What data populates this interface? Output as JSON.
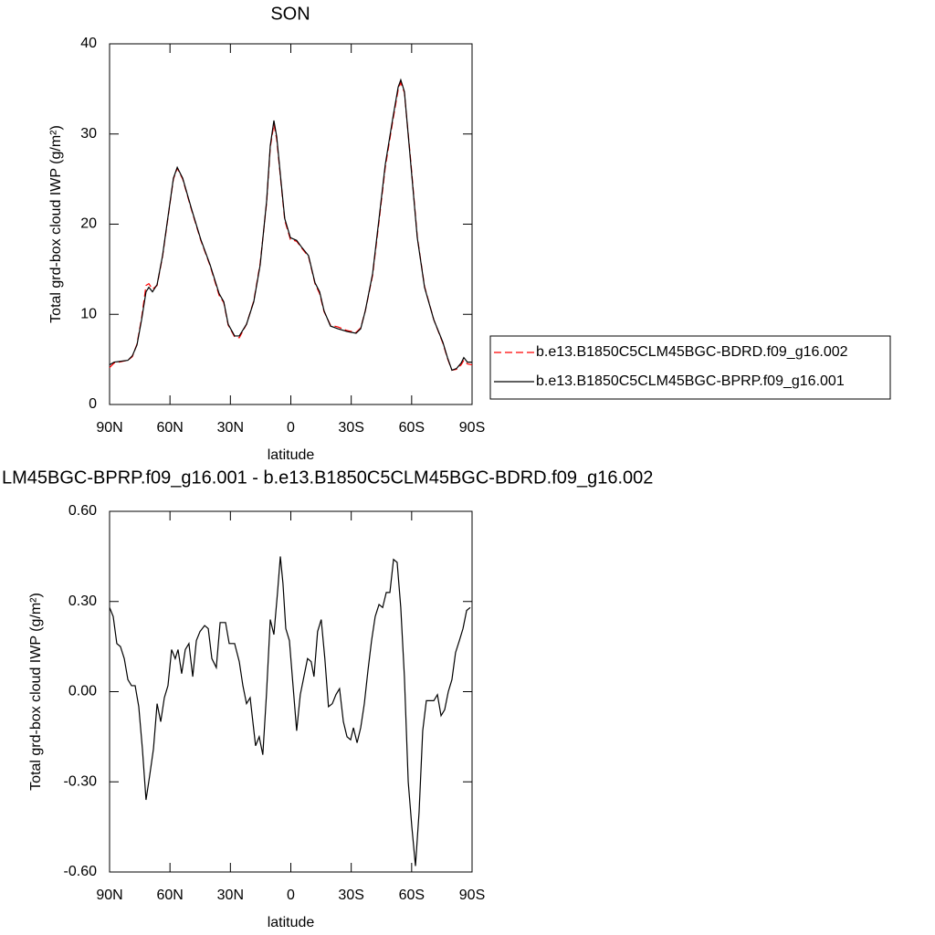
{
  "chart_data": [
    {
      "type": "line",
      "title": "SON",
      "xlabel": "latitude",
      "ylabel": "Total grd-box cloud IWP (g/m²)",
      "xlim": [
        90,
        -90
      ],
      "xticks": [
        {
          "value": 90,
          "label": "90N"
        },
        {
          "value": 60,
          "label": "60N"
        },
        {
          "value": 30,
          "label": "30N"
        },
        0,
        {
          "value": -30,
          "label": "30S"
        },
        {
          "value": -60,
          "label": "60S"
        },
        {
          "value": -90,
          "label": "90S"
        }
      ],
      "ylim": [
        0,
        40
      ],
      "yticks": [
        0,
        10,
        20,
        30,
        40
      ],
      "legend_position": "right",
      "x": [
        90,
        87.7,
        80.9,
        78.7,
        76.4,
        74.1,
        71.9,
        70.5,
        68.7,
        66.4,
        63.7,
        60.5,
        58.3,
        56.4,
        53.7,
        49.2,
        44.7,
        40.1,
        35.6,
        33.3,
        31.1,
        27.9,
        25.6,
        22.0,
        18.4,
        15.2,
        12.0,
        10.2,
        8.4,
        7.0,
        4.8,
        3.0,
        0.2,
        -2.9,
        -5.2,
        -8.8,
        -12.0,
        -14.3,
        -16.5,
        -19.7,
        -23.4,
        -27.9,
        -32.4,
        -34.7,
        -37.0,
        -40.6,
        -43.8,
        -46.9,
        -50.6,
        -53.3,
        -54.6,
        -56.4,
        -59.6,
        -62.8,
        -66.4,
        -71.0,
        -75.5,
        -77.8,
        -80.0,
        -82.3,
        -84.6,
        -85.9,
        -87.7,
        -90
      ],
      "series": [
        {
          "name": "b.e13.B1850C5CLM45BGC-BDRD.f09_g16.002",
          "color": "#ff0000",
          "style": "dashed",
          "values": [
            4.1,
            4.6,
            4.9,
            5.3,
            6.7,
            9.6,
            13.2,
            13.4,
            12.8,
            13.2,
            16.4,
            21.5,
            25,
            26.2,
            25,
            21.5,
            18.2,
            15.4,
            12.1,
            11.3,
            8.8,
            7.5,
            7.4,
            8.9,
            11.5,
            15.7,
            22.4,
            28.5,
            31.1,
            29.4,
            24.4,
            20.4,
            18.3,
            18.1,
            17.4,
            16.4,
            13.4,
            12.3,
            10.3,
            8.8,
            8.6,
            8.2,
            8.0,
            8.5,
            10.4,
            14.3,
            20.3,
            26.3,
            31.4,
            34.9,
            35.7,
            34.6,
            26.9,
            18.6,
            13.1,
            9.4,
            6.8,
            5.1,
            3.8,
            3.9,
            4.4,
            4.9,
            4.5,
            4.4
          ]
        },
        {
          "name": "b.e13.B1850C5CLM45BGC-BPRP.f09_g16.001",
          "color": "#000000",
          "style": "solid",
          "values": [
            4.4,
            4.7,
            4.9,
            5.4,
            6.6,
            9.4,
            12.5,
            13,
            12.5,
            13.3,
            16.5,
            21.6,
            25.1,
            26.3,
            25.1,
            21.6,
            18.3,
            15.5,
            12.3,
            11.4,
            8.9,
            7.6,
            7.6,
            8.9,
            11.4,
            15.5,
            22.6,
            28.7,
            31.5,
            29.7,
            24.6,
            20.6,
            18.5,
            18.2,
            17.5,
            16.5,
            13.5,
            12.5,
            10.4,
            8.7,
            8.4,
            8.1,
            7.9,
            8.4,
            10.4,
            14.5,
            20.6,
            26.6,
            31.7,
            35.2,
            36,
            34.7,
            26.6,
            18.5,
            13,
            9.4,
            6.9,
            5.2,
            3.8,
            4,
            4.6,
            5.2,
            4.7,
            4.7
          ]
        }
      ]
    },
    {
      "type": "line",
      "title": "LM45BGC-BPRP.f09_g16.001 - b.e13.B1850C5CLM45BGC-BDRD.f09_g16.002",
      "xlabel": "latitude",
      "ylabel": "Total grd-box cloud IWP (g/m²)",
      "xlim": [
        90,
        -90
      ],
      "xticks": [
        {
          "value": 90,
          "label": "90N"
        },
        {
          "value": 60,
          "label": "60N"
        },
        {
          "value": 30,
          "label": "30N"
        },
        0,
        {
          "value": -30,
          "label": "30S"
        },
        {
          "value": -60,
          "label": "60S"
        },
        {
          "value": -90,
          "label": "90S"
        }
      ],
      "ylim": [
        -0.6,
        0.6
      ],
      "yticks": [
        {
          "value": -0.6,
          "label": "-0.60"
        },
        {
          "value": -0.3,
          "label": "-0.30"
        },
        {
          "value": 0,
          "label": "0.00"
        },
        {
          "value": 0.3,
          "label": "0.30"
        },
        {
          "value": 0.6,
          "label": "0.60"
        }
      ],
      "color": "#000000",
      "x": [
        90,
        88.2,
        86.4,
        84.6,
        82.7,
        80.9,
        79.1,
        77.3,
        75.5,
        73.7,
        71.9,
        70.1,
        68.2,
        66.4,
        64.6,
        62.8,
        61.0,
        59.2,
        57.4,
        56.0,
        54.2,
        52.4,
        50.6,
        48.7,
        46.9,
        45.1,
        42.8,
        41.0,
        39.2,
        37.0,
        35.1,
        32.4,
        30.6,
        27.9,
        25.6,
        23.8,
        22.0,
        20.2,
        17.5,
        15.7,
        13.9,
        12.1,
        10.2,
        8.4,
        6.6,
        5.2,
        3.9,
        2.5,
        0.7,
        -1.1,
        -2.9,
        -4.7,
        -6.5,
        -8.3,
        -10.1,
        -11.5,
        -13.3,
        -15.1,
        -16.9,
        -18.7,
        -20.6,
        -22.4,
        -24.2,
        -26.1,
        -27.9,
        -29.7,
        -31.1,
        -32.9,
        -34.7,
        -36.5,
        -38.3,
        -40.1,
        -41.9,
        -43.8,
        -45.6,
        -47.4,
        -49.2,
        -51.0,
        -52.8,
        -54.6,
        -56.4,
        -58.3,
        -60.1,
        -61.9,
        -63.7,
        -65.5,
        -67.3,
        -69.1,
        -71.0,
        -72.8,
        -74.6,
        -76.4,
        -78.2,
        -80.0,
        -81.8,
        -83.7,
        -85.5,
        -87.3,
        -89.1
      ],
      "values": [
        0.28,
        0.25,
        0.16,
        0.15,
        0.11,
        0.04,
        0.02,
        0.02,
        -0.05,
        -0.19,
        -0.36,
        -0.28,
        -0.19,
        -0.04,
        -0.1,
        -0.02,
        0.02,
        0.14,
        0.11,
        0.14,
        0.06,
        0.14,
        0.16,
        0.05,
        0.17,
        0.2,
        0.22,
        0.21,
        0.11,
        0.08,
        0.23,
        0.23,
        0.16,
        0.16,
        0.1,
        0.02,
        -0.04,
        -0.02,
        -0.18,
        -0.15,
        -0.21,
        -0.01,
        0.24,
        0.19,
        0.33,
        0.45,
        0.36,
        0.21,
        0.17,
        0.02,
        -0.13,
        -0.01,
        0.05,
        0.11,
        0.1,
        0.05,
        0.2,
        0.24,
        0.11,
        -0.05,
        -0.04,
        -0.01,
        0.01,
        -0.1,
        -0.15,
        -0.16,
        -0.12,
        -0.17,
        -0.12,
        -0.04,
        0.07,
        0.17,
        0.25,
        0.29,
        0.28,
        0.33,
        0.33,
        0.44,
        0.43,
        0.28,
        0.05,
        -0.3,
        -0.45,
        -0.58,
        -0.4,
        -0.13,
        -0.03,
        -0.03,
        -0.03,
        -0.01,
        -0.08,
        -0.06,
        0.0,
        0.04,
        0.13,
        0.17,
        0.21,
        0.27,
        0.28
      ]
    }
  ]
}
